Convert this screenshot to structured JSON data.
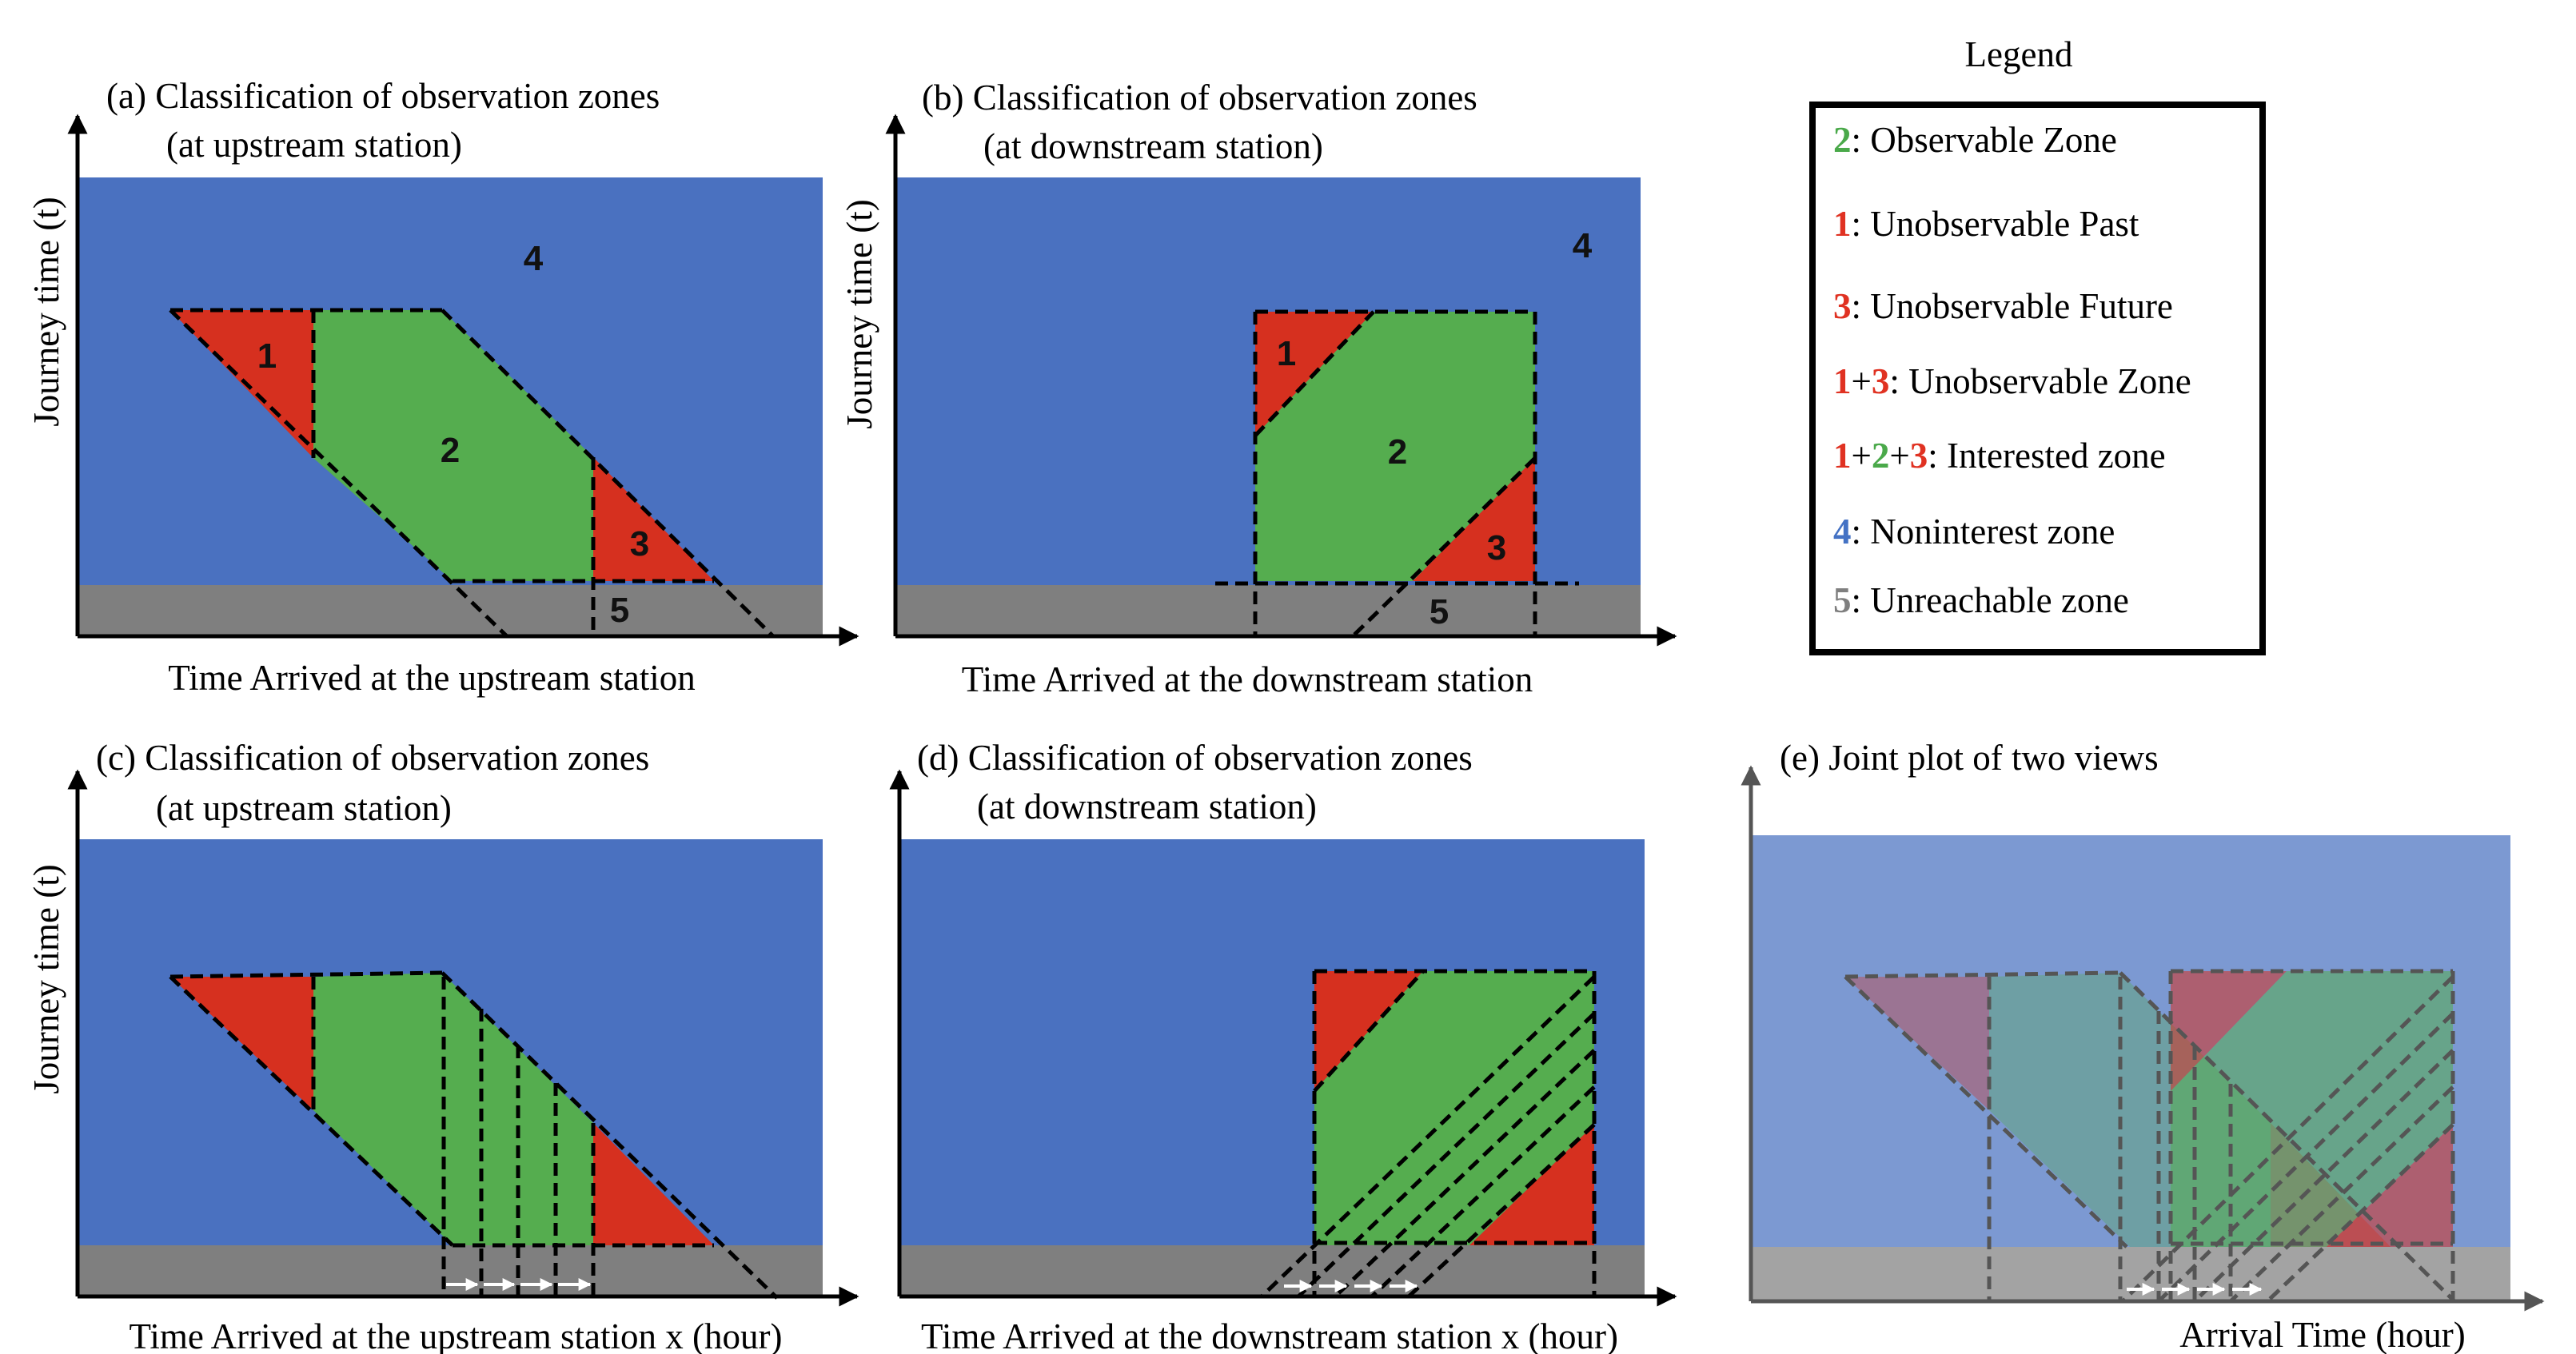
{
  "colors": {
    "interest": "#4a71c0",
    "unreachable": "#7f7f7f",
    "observable": "#55ad4f",
    "unobservable": "#d6301f",
    "legend_green": "#4aa94a",
    "legend_red": "#e03222",
    "legend_blue": "#4472c4",
    "legend_gray": "#7f7f7f"
  },
  "panels": {
    "a": {
      "title_line1": "(a) Classification of observation zones",
      "title_line2": "(at upstream station)",
      "xlabel": "Time Arrived at the upstream station",
      "ylabel": "Journey time (t)",
      "zone_labels": [
        "1",
        "2",
        "3",
        "4",
        "5"
      ]
    },
    "b": {
      "title_line1": "(b) Classification of observation zones",
      "title_line2": "(at downstream station)",
      "xlabel": "Time Arrived at the downstream station",
      "ylabel": "Journey time (t)",
      "zone_labels": [
        "1",
        "2",
        "3",
        "4",
        "5"
      ]
    },
    "c": {
      "title_line1": "(c) Classification of observation zones",
      "title_line2": "(at upstream station)",
      "xlabel": "Time Arrived at the upstream station x (hour)",
      "ylabel": "Journey time (t)"
    },
    "d": {
      "title_line1": "(d) Classification of observation zones",
      "title_line2": "(at downstream station)",
      "xlabel": "Time Arrived at the downstream station x (hour)"
    },
    "e": {
      "title": "(e) Joint plot of two views",
      "xlabel": "Arrival Time (hour)"
    }
  },
  "legend": {
    "title": "Legend",
    "items": [
      {
        "parts": [
          {
            "t": "2",
            "c": "green"
          }
        ],
        "text": ": Observable Zone"
      },
      {
        "parts": [
          {
            "t": "1",
            "c": "red"
          }
        ],
        "text": ": Unobservable Past"
      },
      {
        "parts": [
          {
            "t": "3",
            "c": "red"
          }
        ],
        "text": ": Unobservable Future"
      },
      {
        "parts": [
          {
            "t": "1",
            "c": "red"
          },
          {
            "t": "+",
            "c": "black"
          },
          {
            "t": "3",
            "c": "red"
          }
        ],
        "text": ": Unobservable Zone"
      },
      {
        "parts": [
          {
            "t": "1",
            "c": "red"
          },
          {
            "t": "+",
            "c": "black"
          },
          {
            "t": "2",
            "c": "green"
          },
          {
            "t": "+",
            "c": "black"
          },
          {
            "t": "3",
            "c": "red"
          }
        ],
        "text": ": Interested zone"
      },
      {
        "parts": [
          {
            "t": "4",
            "c": "blue"
          }
        ],
        "text": ": Noninterest zone"
      },
      {
        "parts": [
          {
            "t": "5",
            "c": "gray"
          }
        ],
        "text": ": Unreachable zone"
      }
    ]
  }
}
